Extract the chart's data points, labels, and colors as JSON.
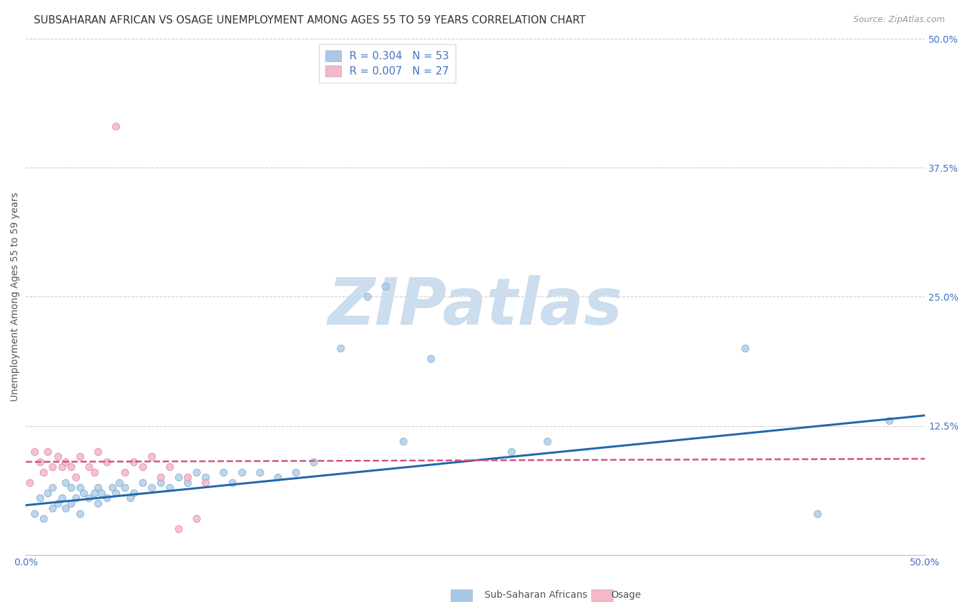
{
  "title": "SUBSAHARAN AFRICAN VS OSAGE UNEMPLOYMENT AMONG AGES 55 TO 59 YEARS CORRELATION CHART",
  "source": "Source: ZipAtlas.com",
  "ylabel": "Unemployment Among Ages 55 to 59 years",
  "xlim": [
    0.0,
    0.5
  ],
  "ylim": [
    0.0,
    0.5
  ],
  "yticks": [
    0.0,
    0.125,
    0.25,
    0.375,
    0.5
  ],
  "ytick_labels": [
    "",
    "12.5%",
    "25.0%",
    "37.5%",
    "50.0%"
  ],
  "xticks": [
    0.0,
    0.1,
    0.2,
    0.3,
    0.4,
    0.5
  ],
  "xtick_labels": [
    "0.0%",
    "",
    "",
    "",
    "",
    "50.0%"
  ],
  "blue_R": 0.304,
  "blue_N": 53,
  "pink_R": 0.007,
  "pink_N": 27,
  "blue_color": "#a8c8e8",
  "pink_color": "#f4b8c8",
  "blue_line_color": "#2166ac",
  "pink_line_color": "#d45080",
  "watermark_text": "ZIPatlas",
  "legend_label_blue": "Sub-Saharan Africans",
  "legend_label_pink": "Osage",
  "blue_scatter_x": [
    0.005,
    0.008,
    0.01,
    0.012,
    0.015,
    0.015,
    0.018,
    0.02,
    0.022,
    0.022,
    0.025,
    0.025,
    0.028,
    0.03,
    0.03,
    0.032,
    0.035,
    0.038,
    0.04,
    0.04,
    0.042,
    0.045,
    0.048,
    0.05,
    0.052,
    0.055,
    0.058,
    0.06,
    0.065,
    0.07,
    0.075,
    0.08,
    0.085,
    0.09,
    0.095,
    0.1,
    0.11,
    0.115,
    0.12,
    0.13,
    0.14,
    0.15,
    0.16,
    0.175,
    0.19,
    0.2,
    0.21,
    0.225,
    0.27,
    0.29,
    0.4,
    0.44,
    0.48
  ],
  "blue_scatter_y": [
    0.04,
    0.055,
    0.035,
    0.06,
    0.045,
    0.065,
    0.05,
    0.055,
    0.045,
    0.07,
    0.05,
    0.065,
    0.055,
    0.04,
    0.065,
    0.06,
    0.055,
    0.06,
    0.05,
    0.065,
    0.06,
    0.055,
    0.065,
    0.06,
    0.07,
    0.065,
    0.055,
    0.06,
    0.07,
    0.065,
    0.07,
    0.065,
    0.075,
    0.07,
    0.08,
    0.075,
    0.08,
    0.07,
    0.08,
    0.08,
    0.075,
    0.08,
    0.09,
    0.2,
    0.25,
    0.26,
    0.11,
    0.19,
    0.1,
    0.11,
    0.2,
    0.04,
    0.13
  ],
  "pink_scatter_x": [
    0.002,
    0.005,
    0.008,
    0.01,
    0.012,
    0.015,
    0.018,
    0.02,
    0.022,
    0.025,
    0.028,
    0.03,
    0.035,
    0.038,
    0.04,
    0.045,
    0.05,
    0.055,
    0.06,
    0.065,
    0.07,
    0.075,
    0.08,
    0.085,
    0.09,
    0.095,
    0.1
  ],
  "pink_scatter_y": [
    0.07,
    0.1,
    0.09,
    0.08,
    0.1,
    0.085,
    0.095,
    0.085,
    0.09,
    0.085,
    0.075,
    0.095,
    0.085,
    0.08,
    0.1,
    0.09,
    0.415,
    0.08,
    0.09,
    0.085,
    0.095,
    0.075,
    0.085,
    0.025,
    0.075,
    0.035,
    0.07
  ],
  "blue_trend_x": [
    0.0,
    0.5
  ],
  "blue_trend_y": [
    0.048,
    0.135
  ],
  "pink_trend_x": [
    0.0,
    0.5
  ],
  "pink_trend_y": [
    0.09,
    0.093
  ],
  "title_fontsize": 11,
  "axis_label_fontsize": 10,
  "tick_fontsize": 10,
  "legend_fontsize": 11,
  "watermark_color": "#ccdded",
  "background_color": "#ffffff",
  "grid_color": "#cccccc",
  "tick_color": "#4472c4"
}
